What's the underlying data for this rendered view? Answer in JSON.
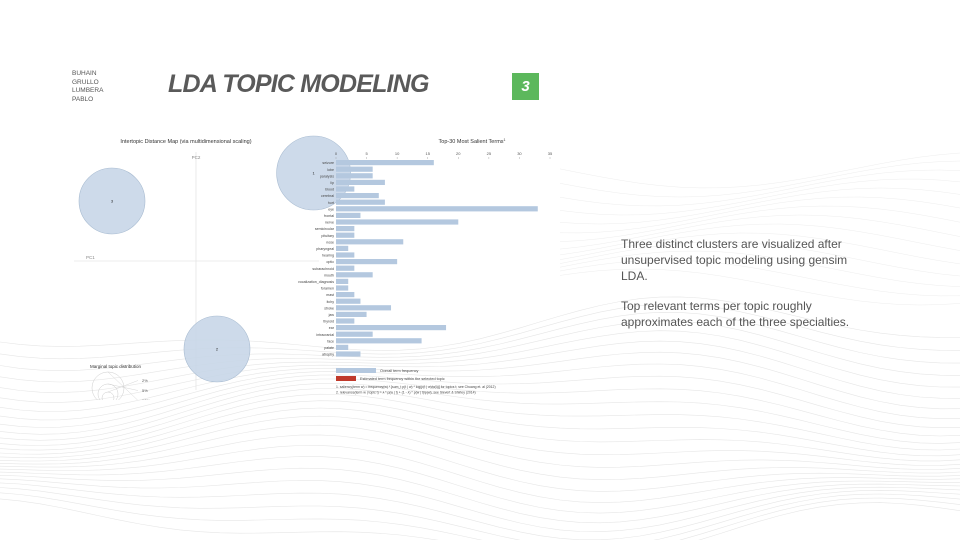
{
  "authors": [
    "BUHAIN",
    "GRULLO",
    "LUMBERA",
    "PABLO"
  ],
  "slide": {
    "title": "LDA TOPIC MODELING",
    "number": "3"
  },
  "notes": {
    "p1": "Three distinct clusters are visualized after unsupervised topic modeling using gensim LDA.",
    "p2": "Top relevant terms per topic roughly approximates each of the three specialties."
  },
  "colors": {
    "accent": "#5cb85c",
    "bar": "#b4c8df",
    "circle": "#c8d7e8",
    "selected": "#c0392b"
  },
  "chart_data": [
    {
      "type": "scatter",
      "title": "Intertopic Distance Map (via multidimensional scaling)",
      "xlabel": "PC1",
      "ylabel": "PC2",
      "topics": [
        {
          "label": "1",
          "pc1": 0.28,
          "pc2": 0.22,
          "size": 37
        },
        {
          "label": "2",
          "pc1": 0.05,
          "pc2": -0.22,
          "size": 33
        },
        {
          "label": "3",
          "pc1": -0.2,
          "pc2": 0.15,
          "size": 33
        }
      ],
      "marginal_title": "Marginal topic distribution",
      "marginal_labels": [
        "2%",
        "5%",
        "10%"
      ]
    },
    {
      "type": "bar",
      "title": "Top-30 Most Salient Terms",
      "title_sup": "1",
      "xlim": [
        0,
        35
      ],
      "ticks": [
        0,
        5,
        10,
        15,
        20,
        25,
        30,
        35
      ],
      "categories": [
        "seizure",
        "lobe",
        "paralysis",
        "lip",
        "blood",
        "cerebral",
        "hurt",
        "eye",
        "frontal",
        "nerve",
        "semicircular",
        "pituitary",
        "nose",
        "pharyngeal",
        "hearing",
        "optic",
        "subarachnoid",
        "mouth",
        "vocalization_diagnosis",
        "foramen",
        "mast",
        "itchy",
        "stroke",
        "jaw",
        "thyroid",
        "ear",
        "intracranial",
        "face",
        "palate",
        "atrophy"
      ],
      "values": [
        16,
        6,
        6,
        8,
        3,
        7,
        8,
        33,
        4,
        20,
        3,
        3,
        11,
        2,
        3,
        10,
        3,
        6,
        2,
        2,
        3,
        4,
        9,
        5,
        3,
        18,
        6,
        14,
        2,
        4
      ],
      "legend": [
        "Overall term frequency",
        "Estimated term frequency within the selected topic"
      ],
      "footnotes": [
        "1. saliency(term w) = frequency(w) * [sum_t p(t | w) * log(p(t | w)/p(t))] for topics t; see Chuang et. al (2012)",
        "2. relevance(term w | topic t) = λ * p(w | t) + (1 - λ) * p(w | t)/p(w); see Sievert & Shirley (2014)"
      ]
    }
  ]
}
